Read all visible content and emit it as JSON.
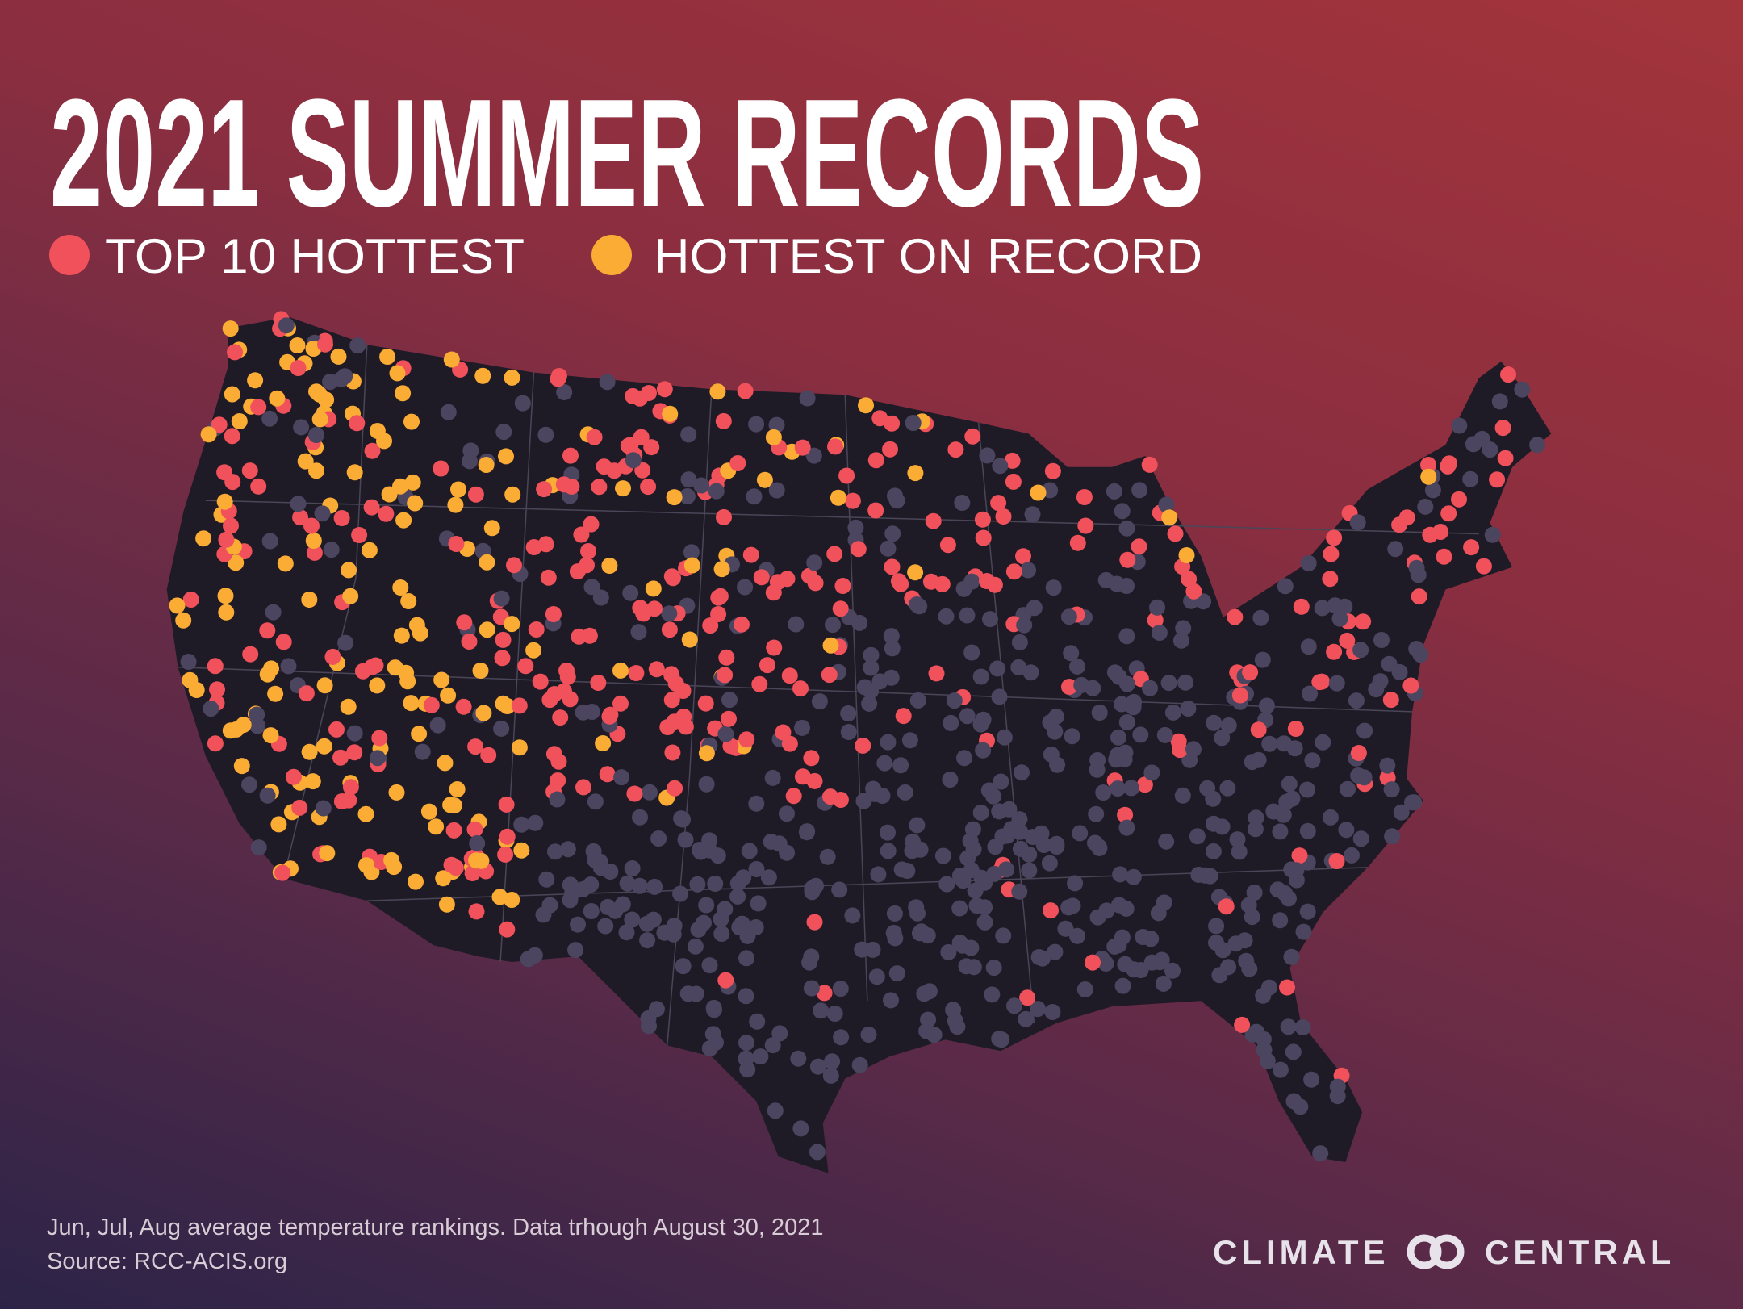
{
  "title": "2021 SUMMER RECORDS",
  "legend": [
    {
      "label": "TOP 10 HOTTEST",
      "color": "#f0515b"
    },
    {
      "label": "HOTTEST ON RECORD",
      "color": "#fbac35"
    }
  ],
  "footnote": [
    "Jun, Jul, Aug average temperature rankings. Data trhough August 30, 2021",
    "Source: RCC-ACIS.org"
  ],
  "logo": {
    "left": "CLIMATE",
    "right": "CENTRAL"
  }
}
